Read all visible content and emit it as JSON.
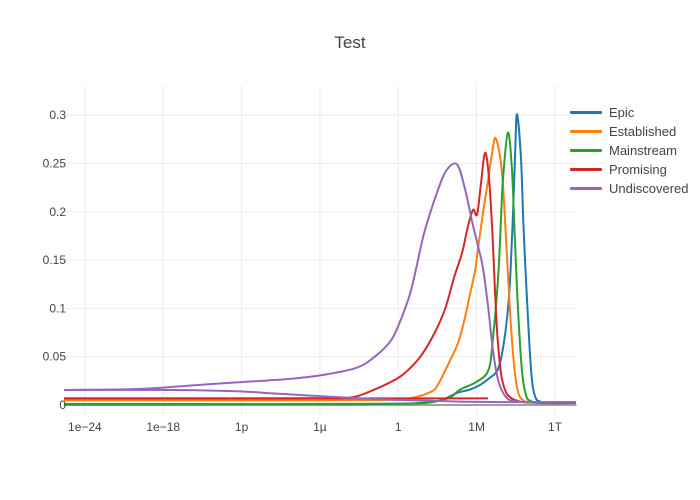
{
  "chart_data": {
    "type": "line",
    "title": "Test",
    "grid": true,
    "legend_position": "right",
    "colors": {
      "text": "#444444",
      "gridline": "#ebebeb",
      "zeroline": "#a0a0a0",
      "background": "#ffffff"
    },
    "x_axis": {
      "scale": "log10",
      "range_log10": [
        -25.6,
        13.65
      ],
      "ticks": [
        {
          "label": "1e−24",
          "log10": -24
        },
        {
          "label": "1e−18",
          "log10": -18
        },
        {
          "label": "1p",
          "log10": -12
        },
        {
          "label": "1µ",
          "log10": -6
        },
        {
          "label": "1",
          "log10": 0
        },
        {
          "label": "1M",
          "log10": 6
        },
        {
          "label": "1T",
          "log10": 12
        }
      ]
    },
    "y_axis": {
      "range": [
        -0.0104,
        0.3302
      ],
      "zeroline": true,
      "ticks": [
        {
          "label": "0",
          "value": 0
        },
        {
          "label": "0.05",
          "value": 0.05
        },
        {
          "label": "0.1",
          "value": 0.1
        },
        {
          "label": "0.15",
          "value": 0.15
        },
        {
          "label": "0.2",
          "value": 0.2
        },
        {
          "label": "0.25",
          "value": 0.25
        },
        {
          "label": "0.3",
          "value": 0.3
        }
      ]
    },
    "series": [
      {
        "name": "Epic",
        "color": "#1f77b4",
        "peak": {
          "log10x": 9.09,
          "y": 0.301
        },
        "points": [
          [
            -25.6,
            0.0005
          ],
          [
            -18,
            0.0006
          ],
          [
            -12,
            0.0007
          ],
          [
            -6,
            0.0008
          ],
          [
            0,
            0.0012
          ],
          [
            2.5,
            0.003
          ],
          [
            3.5,
            0.006
          ],
          [
            4.5,
            0.0125
          ],
          [
            5.5,
            0.016
          ],
          [
            6.3,
            0.021
          ],
          [
            7.0,
            0.028
          ],
          [
            7.6,
            0.036
          ],
          [
            8.0,
            0.057
          ],
          [
            8.4,
            0.099
          ],
          [
            8.6,
            0.14
          ],
          [
            8.8,
            0.203
          ],
          [
            8.95,
            0.26
          ],
          [
            9.09,
            0.301
          ],
          [
            9.4,
            0.255
          ],
          [
            9.6,
            0.182
          ],
          [
            9.9,
            0.099
          ],
          [
            10.2,
            0.031
          ],
          [
            10.5,
            0.008
          ],
          [
            10.9,
            0.0035
          ],
          [
            11.5,
            0.002
          ],
          [
            13.6,
            0.002
          ]
        ]
      },
      {
        "name": "Established",
        "color": "#ff7f0e",
        "peak": {
          "log10x": 7.48,
          "y": 0.276
        },
        "points": [
          [
            -25.6,
            0.0047
          ],
          [
            -18,
            0.0047
          ],
          [
            -12,
            0.0047
          ],
          [
            -6,
            0.0048
          ],
          [
            -3,
            0.005
          ],
          [
            -1,
            0.0052
          ],
          [
            0,
            0.0055
          ],
          [
            1.3,
            0.008
          ],
          [
            2.4,
            0.013
          ],
          [
            3.0,
            0.02
          ],
          [
            4.0,
            0.047
          ],
          [
            4.6,
            0.065
          ],
          [
            5.1,
            0.09
          ],
          [
            5.5,
            0.115
          ],
          [
            5.9,
            0.14
          ],
          [
            6.1,
            0.161
          ],
          [
            6.5,
            0.2
          ],
          [
            6.9,
            0.235
          ],
          [
            7.2,
            0.262
          ],
          [
            7.48,
            0.276
          ],
          [
            7.95,
            0.24
          ],
          [
            8.25,
            0.172
          ],
          [
            8.55,
            0.099
          ],
          [
            8.86,
            0.042
          ],
          [
            9.17,
            0.0135
          ],
          [
            9.55,
            0.005
          ],
          [
            9.95,
            0.003
          ],
          [
            11,
            0.002
          ],
          [
            13.6,
            0.002
          ]
        ]
      },
      {
        "name": "Mainstream",
        "color": "#2ca02c",
        "peak": {
          "log10x": 8.4,
          "y": 0.282
        },
        "points": [
          [
            -25.6,
            0.001
          ],
          [
            -18,
            0.001
          ],
          [
            -12,
            0.001
          ],
          [
            -6,
            0.0011
          ],
          [
            0,
            0.0013
          ],
          [
            2,
            0.002
          ],
          [
            3,
            0.004
          ],
          [
            4,
            0.008
          ],
          [
            4.7,
            0.0156
          ],
          [
            6.0,
            0.024
          ],
          [
            6.9,
            0.036
          ],
          [
            7.25,
            0.068
          ],
          [
            7.64,
            0.13
          ],
          [
            7.87,
            0.193
          ],
          [
            8.02,
            0.234
          ],
          [
            8.4,
            0.282
          ],
          [
            8.7,
            0.245
          ],
          [
            8.93,
            0.172
          ],
          [
            9.17,
            0.099
          ],
          [
            9.47,
            0.036
          ],
          [
            9.78,
            0.01
          ],
          [
            10.16,
            0.004
          ],
          [
            11,
            0.002
          ],
          [
            13.6,
            0.002
          ]
        ]
      },
      {
        "name": "Promising",
        "color": "#d62728",
        "peak": {
          "log10x": 6.64,
          "y": 0.261
        },
        "points": [
          [
            -25.6,
            0.0068
          ],
          [
            -18,
            0.0068
          ],
          [
            -12,
            0.0068
          ],
          [
            -6,
            0.0069
          ],
          [
            -3.5,
            0.008
          ],
          [
            -1.9,
            0.0156
          ],
          [
            -1.0,
            0.021
          ],
          [
            0,
            0.028
          ],
          [
            0.9,
            0.038
          ],
          [
            1.8,
            0.052
          ],
          [
            2.8,
            0.075
          ],
          [
            3.6,
            0.1
          ],
          [
            4.3,
            0.133
          ],
          [
            4.9,
            0.158
          ],
          [
            5.3,
            0.183
          ],
          [
            5.72,
            0.202
          ],
          [
            6.03,
            0.197
          ],
          [
            6.3,
            0.225
          ],
          [
            6.64,
            0.261
          ],
          [
            6.95,
            0.235
          ],
          [
            7.2,
            0.18
          ],
          [
            7.4,
            0.12
          ],
          [
            7.6,
            0.07
          ],
          [
            7.9,
            0.03
          ],
          [
            8.3,
            0.012
          ],
          [
            8.8,
            0.006
          ],
          [
            9.2,
            0.004
          ],
          [
            10,
            0.0025
          ],
          [
            13.6,
            0.0025
          ]
        ],
        "secondary_points": [
          [
            -25.6,
            0.0068
          ],
          [
            6.87,
            0.0068
          ]
        ]
      },
      {
        "name": "Undiscovered",
        "color": "#9467bd",
        "peak": {
          "log10x": 4.5,
          "y": 0.249
        },
        "points": [
          [
            -25.6,
            0.0155
          ],
          [
            -20,
            0.0165
          ],
          [
            -17,
            0.019
          ],
          [
            -14,
            0.022
          ],
          [
            -11,
            0.0245
          ],
          [
            -8.3,
            0.027
          ],
          [
            -5.8,
            0.031
          ],
          [
            -3.2,
            0.0385
          ],
          [
            -1.8,
            0.05
          ],
          [
            -0.6,
            0.066
          ],
          [
            0.1,
            0.085
          ],
          [
            0.9,
            0.115
          ],
          [
            1.4,
            0.143
          ],
          [
            2.0,
            0.179
          ],
          [
            3.0,
            0.221
          ],
          [
            3.7,
            0.243
          ],
          [
            4.5,
            0.249
          ],
          [
            5.1,
            0.224
          ],
          [
            5.7,
            0.187
          ],
          [
            6.1,
            0.165
          ],
          [
            6.5,
            0.141
          ],
          [
            6.9,
            0.099
          ],
          [
            7.25,
            0.057
          ],
          [
            7.64,
            0.026
          ],
          [
            8.2,
            0.009
          ],
          [
            8.9,
            0.004
          ],
          [
            10.8,
            0.003
          ],
          [
            13.6,
            0.003
          ]
        ],
        "secondary_points": [
          [
            -25.6,
            0.0155
          ],
          [
            -17,
            0.0155
          ],
          [
            -12.1,
            0.014
          ],
          [
            -9.1,
            0.0115
          ],
          [
            -4.5,
            0.008
          ],
          [
            -0.6,
            0.0055
          ],
          [
            2.2,
            0.0045
          ],
          [
            4.7,
            0.0035
          ],
          [
            8,
            0.003
          ],
          [
            13.6,
            0.003
          ]
        ]
      }
    ]
  }
}
